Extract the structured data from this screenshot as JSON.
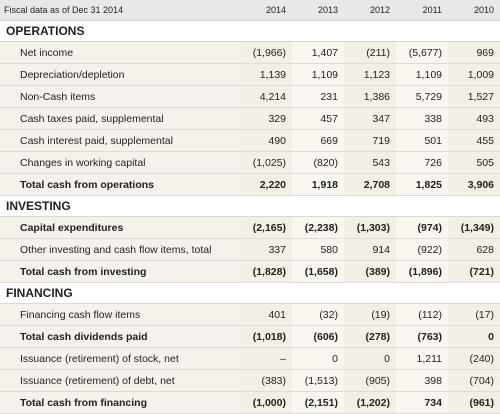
{
  "header": {
    "label": "Fiscal data as of Dec 31 2014",
    "years": [
      "2014",
      "2013",
      "2012",
      "2011",
      "2010"
    ]
  },
  "sections": [
    {
      "title": "OPERATIONS",
      "rows": [
        {
          "label": "Net income",
          "bold": false,
          "values": [
            "(1,966)",
            "1,407",
            "(211)",
            "(5,677)",
            "969"
          ]
        },
        {
          "label": "Depreciation/depletion",
          "bold": false,
          "values": [
            "1,139",
            "1,109",
            "1,123",
            "1,109",
            "1,009"
          ]
        },
        {
          "label": "Non-Cash items",
          "bold": false,
          "values": [
            "4,214",
            "231",
            "1,386",
            "5,729",
            "1,527"
          ]
        },
        {
          "label": "Cash taxes paid, supplemental",
          "bold": false,
          "values": [
            "329",
            "457",
            "347",
            "338",
            "493"
          ]
        },
        {
          "label": "Cash interest paid, supplemental",
          "bold": false,
          "values": [
            "490",
            "669",
            "719",
            "501",
            "455"
          ]
        },
        {
          "label": "Changes in working capital",
          "bold": false,
          "values": [
            "(1,025)",
            "(820)",
            "543",
            "726",
            "505"
          ]
        },
        {
          "label": "Total cash from operations",
          "bold": true,
          "values": [
            "2,220",
            "1,918",
            "2,708",
            "1,825",
            "3,906"
          ]
        }
      ]
    },
    {
      "title": "INVESTING",
      "rows": [
        {
          "label": "Capital expenditures",
          "bold": true,
          "values": [
            "(2,165)",
            "(2,238)",
            "(1,303)",
            "(974)",
            "(1,349)"
          ]
        },
        {
          "label": "Other investing and cash flow items, total",
          "bold": false,
          "values": [
            "337",
            "580",
            "914",
            "(922)",
            "628"
          ]
        },
        {
          "label": "Total cash from investing",
          "bold": true,
          "values": [
            "(1,828)",
            "(1,658)",
            "(389)",
            "(1,896)",
            "(721)"
          ]
        }
      ]
    },
    {
      "title": "FINANCING",
      "rows": [
        {
          "label": "Financing cash flow items",
          "bold": false,
          "values": [
            "401",
            "(32)",
            "(19)",
            "(112)",
            "(17)"
          ]
        },
        {
          "label": "Total cash dividends paid",
          "bold": true,
          "values": [
            "(1,018)",
            "(606)",
            "(278)",
            "(763)",
            "0"
          ]
        },
        {
          "label": "Issuance (retirement) of stock, net",
          "bold": false,
          "values": [
            "–",
            "0",
            "0",
            "1,211",
            "(240)"
          ]
        },
        {
          "label": "Issuance (retirement) of debt, net",
          "bold": false,
          "values": [
            "(383)",
            "(1,513)",
            "(905)",
            "398",
            "(704)"
          ]
        },
        {
          "label": "Total cash from financing",
          "bold": true,
          "values": [
            "(1,000)",
            "(2,151)",
            "(1,202)",
            "734",
            "(961)"
          ]
        }
      ]
    }
  ]
}
